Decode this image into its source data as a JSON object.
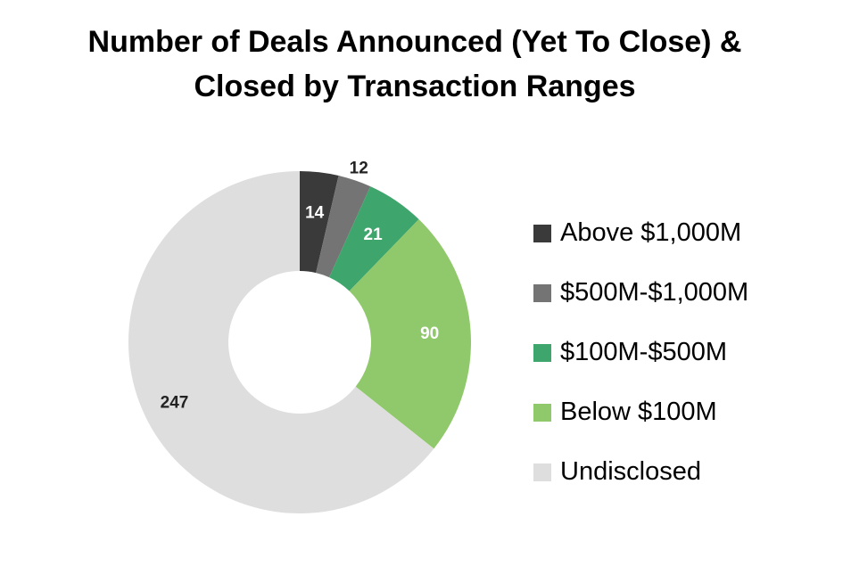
{
  "title": {
    "line1": "Number of Deals Announced (Yet To Close) &",
    "line2": "Closed by Transaction Ranges"
  },
  "chart_data": {
    "type": "pie",
    "variant": "donut",
    "title": "Number of Deals Announced (Yet To Close) & Closed by Transaction Ranges",
    "categories": [
      "Above $1,000M",
      "$500M-$1,000M",
      "$100M-$500M",
      "Below $100M",
      "Undisclosed"
    ],
    "values": [
      14,
      12,
      21,
      90,
      247
    ],
    "colors": [
      "#3a3a3a",
      "#747474",
      "#3ea66d",
      "#90c96b",
      "#dedede"
    ],
    "data_label_colors": [
      "#ffffff",
      "#222222",
      "#ffffff",
      "#ffffff",
      "#222222"
    ],
    "legend": "right"
  }
}
